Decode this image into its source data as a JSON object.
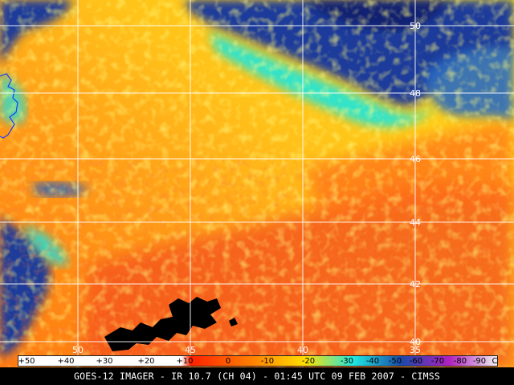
{
  "map": {
    "latitudes": [
      {
        "value": "50"
      },
      {
        "value": "48"
      },
      {
        "value": "46"
      },
      {
        "value": "44"
      },
      {
        "value": "42"
      },
      {
        "value": "40"
      }
    ],
    "longitudes": [
      {
        "value": "50"
      },
      {
        "value": "45"
      },
      {
        "value": "40"
      },
      {
        "value": "35"
      }
    ],
    "palette": {
      "warm_red": "#f02a0c",
      "orange": "#ff8a10",
      "yellow": "#ffe41a",
      "cyan": "#10e8e8",
      "blue": "#1b3b9a",
      "navy": "#0a1560",
      "black": "#000000"
    }
  },
  "colorbar": {
    "ticks": [
      "+50",
      "+40",
      "+30",
      "+20",
      "+10",
      "0",
      "-10",
      "-20",
      "-30",
      "-40",
      "-50",
      "-60",
      "-70",
      "-80",
      "-90",
      "C"
    ]
  },
  "footer": {
    "caption": "GOES-12 IMAGER - IR 10.7 (CH 04) - 01:45 UTC 09 FEB 2007 - CIMSS"
  }
}
